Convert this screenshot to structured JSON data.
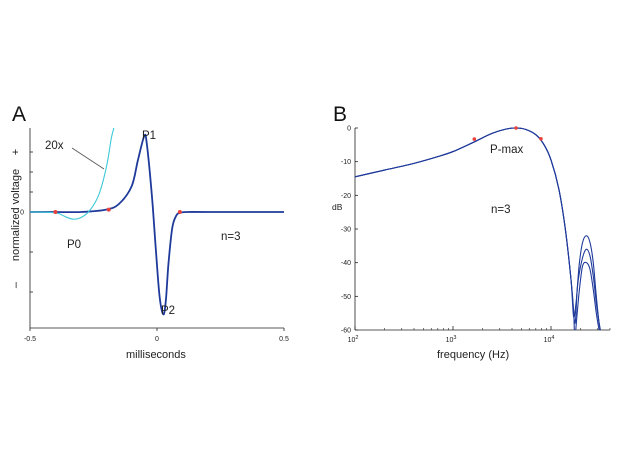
{
  "chart_data": [
    {
      "panel": "A",
      "type": "line",
      "xlabel": "milliseconds",
      "ylabel": "normalized voltage",
      "ylabel_plus": "+",
      "ylabel_minus": "–",
      "xlim": [
        -0.5,
        0.5
      ],
      "xticks": [
        "-0.5",
        "0",
        "0.5"
      ],
      "yticks": [
        "0"
      ],
      "ylim": [
        -1.45,
        1.05
      ],
      "colors": {
        "main": "#1f3a9a",
        "magnified": "#3cc8d8",
        "markers": "#e8403a",
        "leader": "#555555"
      },
      "annotations": [
        {
          "text": "P1"
        },
        {
          "text": "P0"
        },
        {
          "text": "P2"
        },
        {
          "text": "n=3"
        },
        {
          "text": "20x"
        }
      ],
      "series": [
        {
          "style": "solid-dark-blue",
          "x": [
            -0.5,
            -0.4,
            -0.3,
            -0.2,
            -0.15,
            -0.1,
            -0.075,
            -0.05,
            -0.04,
            -0.02,
            -0.005,
            0.01,
            0.025,
            0.035,
            0.045,
            0.06,
            0.075,
            0.09,
            0.12,
            0.2,
            0.5
          ],
          "y": [
            0,
            0,
            0,
            0.03,
            0.1,
            0.32,
            0.65,
            0.95,
            0.85,
            0.2,
            -0.45,
            -1.05,
            -1.28,
            -1.1,
            -0.65,
            -0.2,
            -0.05,
            -0.01,
            0,
            0,
            0
          ]
        },
        {
          "style": "solid-cyan-20x",
          "x": [
            -0.5,
            -0.4,
            -0.36,
            -0.33,
            -0.3,
            -0.27,
            -0.24,
            -0.22,
            -0.2,
            -0.19,
            -0.18,
            -0.17
          ],
          "y": [
            0,
            -0.01,
            -0.06,
            -0.09,
            -0.07,
            0,
            0.14,
            0.3,
            0.55,
            0.72,
            0.92,
            1.05
          ]
        }
      ],
      "markers": {
        "x": [
          -0.4,
          -0.19,
          0.09
        ],
        "y": [
          0,
          0.03,
          0
        ]
      }
    },
    {
      "panel": "B",
      "type": "line",
      "xlabel": "frequency (Hz)",
      "ylabel": "dB",
      "xscale": "log",
      "xlim": [
        100,
        40000
      ],
      "ylim": [
        -60,
        0
      ],
      "xticks": [
        {
          "base": "10",
          "exp": "2",
          "value": 100
        },
        {
          "base": "10",
          "exp": "3",
          "value": 1000
        },
        {
          "base": "10",
          "exp": "4",
          "value": 10000
        }
      ],
      "yticks": [
        "0",
        "-10",
        "-20",
        "-30",
        "-40",
        "-50",
        "-60"
      ],
      "colors": {
        "lines": "#1f3a9a",
        "markers": "#e8403a"
      },
      "annotations": [
        {
          "text": "P-max"
        },
        {
          "text": "n=3"
        }
      ],
      "series": [
        {
          "style": "line-1",
          "x": [
            100,
            200,
            400,
            700,
            1000,
            1600,
            2500,
            3500,
            4400,
            5500,
            7000,
            8500,
            10000,
            12000,
            14000,
            16000,
            17500,
            18500,
            19500,
            21000,
            23000,
            25000,
            27000,
            29000,
            31000,
            33000
          ],
          "y": [
            -14.5,
            -12.5,
            -10.5,
            -8.5,
            -7,
            -4.3,
            -1.6,
            -0.3,
            0,
            -0.4,
            -2,
            -5,
            -9.5,
            -18,
            -30,
            -45,
            -58,
            -48,
            -40,
            -34,
            -32,
            -34,
            -40,
            -50,
            -58,
            -62
          ]
        },
        {
          "style": "line-2",
          "x": [
            100,
            200,
            400,
            700,
            1000,
            1600,
            2500,
            3500,
            4400,
            5500,
            7000,
            8500,
            10000,
            12000,
            14000,
            16000,
            17000,
            18000,
            19000,
            21000,
            23000,
            25000,
            27000,
            29000,
            31000,
            33000,
            35000
          ],
          "y": [
            -14.5,
            -12.5,
            -10.5,
            -8.5,
            -7,
            -4.3,
            -1.6,
            -0.3,
            0,
            -0.4,
            -2,
            -5,
            -9.5,
            -18,
            -30,
            -45,
            -56,
            -52,
            -45,
            -38.5,
            -36,
            -38,
            -44,
            -52,
            -58,
            -62,
            -63
          ]
        },
        {
          "style": "line-3",
          "x": [
            100,
            200,
            400,
            700,
            1000,
            1600,
            2500,
            3500,
            4400,
            5500,
            7000,
            8500,
            10000,
            12000,
            14000,
            16000,
            17000,
            17500,
            18500,
            19500,
            21000,
            23000,
            25000,
            27000,
            29000,
            31000,
            33000
          ],
          "y": [
            -14.5,
            -12.5,
            -10.5,
            -8.5,
            -7,
            -4.3,
            -1.6,
            -0.3,
            0,
            -0.4,
            -2,
            -5,
            -9.5,
            -18,
            -30,
            -45,
            -54,
            -62,
            -55,
            -48,
            -41,
            -40,
            -42,
            -48,
            -55,
            -60,
            -63
          ]
        }
      ],
      "markers": {
        "x": [
          1650,
          4400,
          7900
        ],
        "y": [
          -3.3,
          0,
          -3.2
        ]
      }
    }
  ]
}
